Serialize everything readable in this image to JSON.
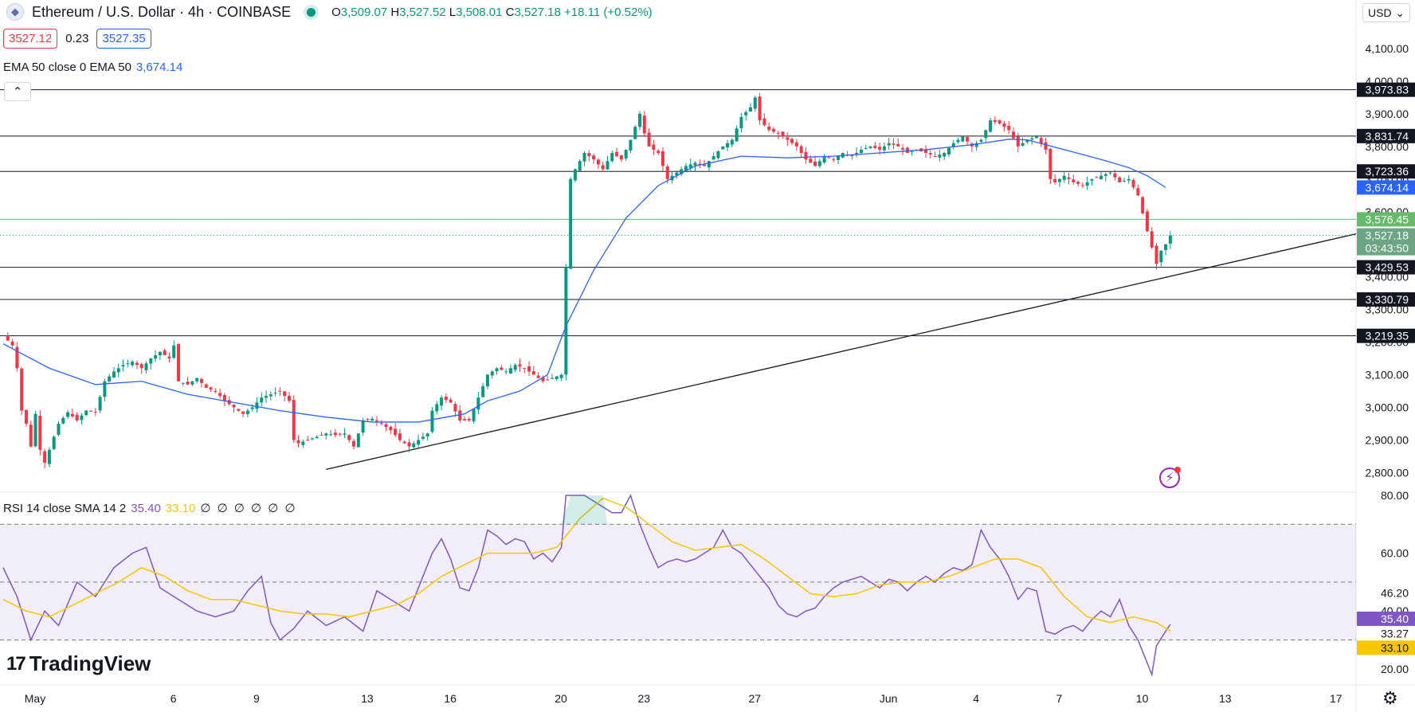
{
  "header": {
    "symbol": "Ethereum / U.S. Dollar · 4h · COINBASE",
    "open": "3,509.07",
    "high": "3,527.52",
    "low": "3,508.01",
    "close": "3,527.18",
    "change": "+18.11 (+0.52%)",
    "bid": "3527.12",
    "spread": "0.23",
    "ask": "3527.35"
  },
  "ema_legend": {
    "label": "EMA 50 close 0 EMA 50",
    "value": "3,674.14"
  },
  "rsi_legend": {
    "label": "RSI 14 close SMA 14 2",
    "rsi": "35.40",
    "sma": "33.10",
    "extra": "∅ ∅ ∅ ∅ ∅ ∅"
  },
  "currency": "USD",
  "logo": "TradingView",
  "colors": {
    "up": "#089981",
    "down": "#f23645",
    "ema": "#2962ff",
    "rsi": "#7e57c2",
    "rsi_sma": "#f7c600",
    "support": "#66bb6a"
  },
  "chart_data": {
    "type": "candlestick",
    "price_ticks": [
      4100,
      4000,
      3900,
      3800,
      3700,
      3600,
      3500,
      3400,
      3300,
      3200,
      3100,
      3000,
      2900,
      2800
    ],
    "ylim": [
      2740,
      4200
    ],
    "x_labels": [
      {
        "label": "May",
        "i": 0
      },
      {
        "label": "6",
        "i": 30
      },
      {
        "label": "9",
        "i": 48
      },
      {
        "label": "13",
        "i": 72
      },
      {
        "label": "16",
        "i": 90
      },
      {
        "label": "20",
        "i": 114
      },
      {
        "label": "23",
        "i": 132
      },
      {
        "label": "27",
        "i": 156
      },
      {
        "label": "Jun",
        "i": 185
      },
      {
        "label": "4",
        "i": 204
      },
      {
        "label": "7",
        "i": 222
      },
      {
        "label": "10",
        "i": 240
      },
      {
        "label": "13",
        "i": 258
      },
      {
        "label": "17",
        "i": 282
      }
    ],
    "horizontal_levels": [
      {
        "value": 3973.83,
        "label": "3,973.83"
      },
      {
        "value": 3831.74,
        "label": "3,831.74"
      },
      {
        "value": 3723.36,
        "label": "3,723.36"
      },
      {
        "value": 3429.53,
        "label": "3,429.53"
      },
      {
        "value": 3330.79,
        "label": "3,330.79"
      },
      {
        "value": 3219.35,
        "label": "3,219.35"
      }
    ],
    "support_level": {
      "value": 3576.45,
      "label": "3,576.45"
    },
    "last_price": {
      "value": 3527.18,
      "label": "3,527.18",
      "countdown": "03:43:50"
    },
    "ema_value": {
      "value": 3674.14,
      "label": "3,674.14"
    },
    "trendline": {
      "from": {
        "i": 70,
        "price": 2810
      },
      "to": {
        "i": 300,
        "price": 3532
      }
    },
    "ema_path": [
      [
        0,
        3195
      ],
      [
        10,
        3120
      ],
      [
        20,
        3070
      ],
      [
        30,
        3080
      ],
      [
        40,
        3040
      ],
      [
        50,
        3015
      ],
      [
        60,
        2990
      ],
      [
        70,
        2970
      ],
      [
        80,
        2955
      ],
      [
        90,
        2955
      ],
      [
        100,
        2980
      ],
      [
        105,
        3020
      ],
      [
        112,
        3050
      ],
      [
        118,
        3100
      ],
      [
        122,
        3250
      ],
      [
        128,
        3420
      ],
      [
        135,
        3580
      ],
      [
        142,
        3680
      ],
      [
        150,
        3740
      ],
      [
        160,
        3770
      ],
      [
        170,
        3765
      ],
      [
        180,
        3770
      ],
      [
        190,
        3780
      ],
      [
        200,
        3790
      ],
      [
        210,
        3805
      ],
      [
        218,
        3822
      ],
      [
        222,
        3820
      ],
      [
        230,
        3790
      ],
      [
        238,
        3760
      ],
      [
        244,
        3735
      ],
      [
        248,
        3710
      ],
      [
        252,
        3674.14
      ]
    ],
    "price_path": [
      [
        0,
        3220
      ],
      [
        2,
        3190
      ],
      [
        3,
        3120
      ],
      [
        4,
        2990
      ],
      [
        5,
        2950
      ],
      [
        6,
        2880
      ],
      [
        7,
        2980
      ],
      [
        8,
        2870
      ],
      [
        9,
        2830
      ],
      [
        10,
        2870
      ],
      [
        11,
        2910
      ],
      [
        12,
        2950
      ],
      [
        14,
        2985
      ],
      [
        16,
        2960
      ],
      [
        18,
        2990
      ],
      [
        20,
        2985
      ],
      [
        22,
        3080
      ],
      [
        24,
        3110
      ],
      [
        26,
        3130
      ],
      [
        28,
        3140
      ],
      [
        30,
        3120
      ],
      [
        32,
        3150
      ],
      [
        34,
        3170
      ],
      [
        36,
        3150
      ],
      [
        37,
        3190
      ],
      [
        38,
        3080
      ],
      [
        40,
        3070
      ],
      [
        42,
        3090
      ],
      [
        44,
        3060
      ],
      [
        46,
        3050
      ],
      [
        48,
        3020
      ],
      [
        50,
        3000
      ],
      [
        52,
        2980
      ],
      [
        54,
        3000
      ],
      [
        56,
        3030
      ],
      [
        58,
        3040
      ],
      [
        60,
        3050
      ],
      [
        62,
        3020
      ],
      [
        63,
        2900
      ],
      [
        64,
        2890
      ],
      [
        66,
        2900
      ],
      [
        68,
        2910
      ],
      [
        70,
        2920
      ],
      [
        72,
        2915
      ],
      [
        74,
        2920
      ],
      [
        76,
        2880
      ],
      [
        78,
        2960
      ],
      [
        80,
        2965
      ],
      [
        82,
        2950
      ],
      [
        84,
        2930
      ],
      [
        86,
        2900
      ],
      [
        88,
        2880
      ],
      [
        90,
        2900
      ],
      [
        92,
        2920
      ],
      [
        93,
        2990
      ],
      [
        95,
        3030
      ],
      [
        97,
        3015
      ],
      [
        99,
        2960
      ],
      [
        101,
        2960
      ],
      [
        103,
        3030
      ],
      [
        105,
        3100
      ],
      [
        107,
        3120
      ],
      [
        109,
        3110
      ],
      [
        111,
        3130
      ],
      [
        113,
        3120
      ],
      [
        115,
        3100
      ],
      [
        117,
        3080
      ],
      [
        119,
        3090
      ],
      [
        121,
        3100
      ],
      [
        122,
        3430
      ],
      [
        123,
        3700
      ],
      [
        124,
        3730
      ],
      [
        126,
        3780
      ],
      [
        128,
        3760
      ],
      [
        130,
        3730
      ],
      [
        132,
        3780
      ],
      [
        134,
        3760
      ],
      [
        136,
        3820
      ],
      [
        138,
        3900
      ],
      [
        139,
        3840
      ],
      [
        140,
        3800
      ],
      [
        142,
        3780
      ],
      [
        144,
        3700
      ],
      [
        146,
        3720
      ],
      [
        148,
        3740
      ],
      [
        150,
        3750
      ],
      [
        152,
        3740
      ],
      [
        154,
        3770
      ],
      [
        156,
        3800
      ],
      [
        158,
        3820
      ],
      [
        160,
        3890
      ],
      [
        162,
        3920
      ],
      [
        163,
        3950
      ],
      [
        164,
        3880
      ],
      [
        166,
        3850
      ],
      [
        168,
        3840
      ],
      [
        170,
        3820
      ],
      [
        172,
        3800
      ],
      [
        174,
        3760
      ],
      [
        176,
        3740
      ],
      [
        178,
        3770
      ],
      [
        180,
        3760
      ],
      [
        182,
        3780
      ],
      [
        184,
        3770
      ],
      [
        186,
        3790
      ],
      [
        188,
        3800
      ],
      [
        190,
        3790
      ],
      [
        192,
        3810
      ],
      [
        194,
        3800
      ],
      [
        196,
        3780
      ],
      [
        198,
        3790
      ],
      [
        200,
        3780
      ],
      [
        202,
        3770
      ],
      [
        204,
        3780
      ],
      [
        206,
        3810
      ],
      [
        208,
        3830
      ],
      [
        210,
        3800
      ],
      [
        212,
        3820
      ],
      [
        214,
        3880
      ],
      [
        216,
        3870
      ],
      [
        218,
        3850
      ],
      [
        220,
        3800
      ],
      [
        222,
        3820
      ],
      [
        224,
        3830
      ],
      [
        226,
        3790
      ],
      [
        227,
        3700
      ],
      [
        228,
        3690
      ],
      [
        230,
        3710
      ],
      [
        232,
        3690
      ],
      [
        234,
        3680
      ],
      [
        236,
        3700
      ],
      [
        238,
        3710
      ],
      [
        240,
        3720
      ],
      [
        242,
        3690
      ],
      [
        244,
        3700
      ],
      [
        246,
        3650
      ],
      [
        248,
        3540
      ],
      [
        249,
        3490
      ],
      [
        250,
        3440
      ],
      [
        251,
        3480
      ],
      [
        252,
        3500
      ],
      [
        253,
        3527.18
      ]
    ],
    "rsi": {
      "ticks": [
        80,
        60,
        46.2,
        40,
        20
      ],
      "ylim": [
        15,
        80
      ],
      "upper_band": 70,
      "lower_band": 30,
      "mid_band": 50,
      "labels": [
        "80.00",
        "60.00",
        "46.20",
        "40.00",
        "20.00"
      ],
      "rsi_value": {
        "value": 35.4,
        "label": "35.40"
      },
      "sma_value": {
        "value": 33.1,
        "label": "33.10"
      },
      "marker_33_27": "33.27",
      "rsi_path": [
        [
          0,
          55
        ],
        [
          3,
          45
        ],
        [
          6,
          30
        ],
        [
          9,
          40
        ],
        [
          12,
          35
        ],
        [
          16,
          50
        ],
        [
          20,
          45
        ],
        [
          24,
          55
        ],
        [
          28,
          60
        ],
        [
          31,
          62
        ],
        [
          34,
          48
        ],
        [
          38,
          44
        ],
        [
          42,
          40
        ],
        [
          46,
          38
        ],
        [
          50,
          40
        ],
        [
          53,
          47
        ],
        [
          56,
          52
        ],
        [
          58,
          36
        ],
        [
          60,
          30
        ],
        [
          63,
          34
        ],
        [
          66,
          40
        ],
        [
          70,
          35
        ],
        [
          74,
          38
        ],
        [
          78,
          33
        ],
        [
          81,
          47
        ],
        [
          84,
          44
        ],
        [
          88,
          40
        ],
        [
          91,
          52
        ],
        [
          93,
          60
        ],
        [
          95,
          65
        ],
        [
          97,
          58
        ],
        [
          99,
          48
        ],
        [
          101,
          47
        ],
        [
          103,
          55
        ],
        [
          105,
          68
        ],
        [
          107,
          66
        ],
        [
          109,
          63
        ],
        [
          111,
          65
        ],
        [
          113,
          64
        ],
        [
          115,
          58
        ],
        [
          117,
          60
        ],
        [
          119,
          57
        ],
        [
          121,
          62
        ],
        [
          122,
          90
        ],
        [
          124,
          82
        ],
        [
          126,
          85
        ],
        [
          128,
          78
        ],
        [
          130,
          76
        ],
        [
          132,
          74
        ],
        [
          134,
          74
        ],
        [
          136,
          80
        ],
        [
          138,
          70
        ],
        [
          140,
          62
        ],
        [
          142,
          55
        ],
        [
          144,
          57
        ],
        [
          146,
          58
        ],
        [
          148,
          57
        ],
        [
          150,
          58
        ],
        [
          152,
          60
        ],
        [
          154,
          62
        ],
        [
          156,
          68
        ],
        [
          158,
          62
        ],
        [
          160,
          60
        ],
        [
          162,
          56
        ],
        [
          164,
          52
        ],
        [
          166,
          48
        ],
        [
          168,
          42
        ],
        [
          170,
          39
        ],
        [
          172,
          38
        ],
        [
          174,
          40
        ],
        [
          176,
          41
        ],
        [
          178,
          45
        ],
        [
          180,
          48
        ],
        [
          182,
          50
        ],
        [
          184,
          51
        ],
        [
          186,
          52
        ],
        [
          188,
          50
        ],
        [
          190,
          48
        ],
        [
          192,
          51
        ],
        [
          194,
          50
        ],
        [
          196,
          47
        ],
        [
          198,
          50
        ],
        [
          200,
          52
        ],
        [
          202,
          50
        ],
        [
          204,
          53
        ],
        [
          206,
          55
        ],
        [
          208,
          54
        ],
        [
          210,
          56
        ],
        [
          212,
          68
        ],
        [
          214,
          62
        ],
        [
          216,
          58
        ],
        [
          218,
          52
        ],
        [
          220,
          44
        ],
        [
          222,
          48
        ],
        [
          224,
          47
        ],
        [
          226,
          33
        ],
        [
          228,
          32
        ],
        [
          230,
          34
        ],
        [
          232,
          35
        ],
        [
          234,
          33
        ],
        [
          236,
          37
        ],
        [
          238,
          40
        ],
        [
          240,
          38
        ],
        [
          242,
          44
        ],
        [
          244,
          35
        ],
        [
          246,
          30
        ],
        [
          248,
          22
        ],
        [
          249,
          18
        ],
        [
          250,
          28
        ],
        [
          252,
          33
        ],
        [
          253,
          35.4
        ]
      ],
      "sma_path": [
        [
          0,
          44
        ],
        [
          5,
          40
        ],
        [
          10,
          38
        ],
        [
          15,
          42
        ],
        [
          20,
          46
        ],
        [
          25,
          50
        ],
        [
          30,
          55
        ],
        [
          35,
          52
        ],
        [
          40,
          47
        ],
        [
          45,
          44
        ],
        [
          50,
          44
        ],
        [
          55,
          42
        ],
        [
          60,
          40
        ],
        [
          65,
          39
        ],
        [
          70,
          39
        ],
        [
          75,
          38
        ],
        [
          80,
          40
        ],
        [
          85,
          42
        ],
        [
          90,
          46
        ],
        [
          95,
          52
        ],
        [
          100,
          56
        ],
        [
          105,
          60
        ],
        [
          110,
          60
        ],
        [
          115,
          60
        ],
        [
          120,
          62
        ],
        [
          125,
          72
        ],
        [
          130,
          79
        ],
        [
          135,
          76
        ],
        [
          140,
          70
        ],
        [
          145,
          64
        ],
        [
          150,
          61
        ],
        [
          155,
          62
        ],
        [
          160,
          63
        ],
        [
          165,
          58
        ],
        [
          170,
          52
        ],
        [
          175,
          46
        ],
        [
          180,
          45
        ],
        [
          185,
          46
        ],
        [
          190,
          49
        ],
        [
          195,
          50
        ],
        [
          200,
          50
        ],
        [
          205,
          52
        ],
        [
          210,
          55
        ],
        [
          215,
          58
        ],
        [
          220,
          58
        ],
        [
          225,
          55
        ],
        [
          230,
          45
        ],
        [
          235,
          38
        ],
        [
          240,
          36
        ],
        [
          245,
          38
        ],
        [
          250,
          36
        ],
        [
          253,
          33.1
        ]
      ]
    }
  }
}
